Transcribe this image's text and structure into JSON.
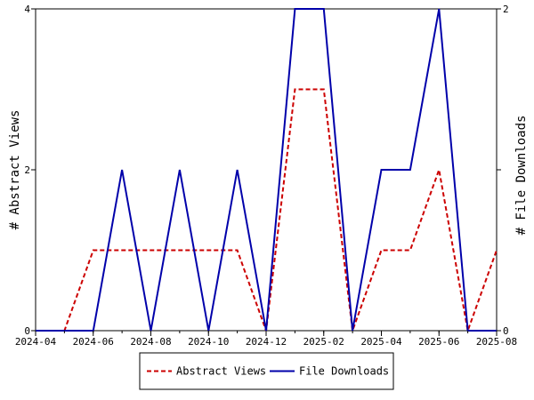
{
  "chart_data": {
    "type": "line",
    "title": "",
    "xlabel": "",
    "ylabel_left": "# Abstract Views",
    "ylabel_right": "# File Downloads",
    "ylim_left": [
      0,
      4
    ],
    "ylim_right": [
      0,
      2
    ],
    "yticks_left": [
      "0",
      "2",
      "4"
    ],
    "yticks_right": [
      "0",
      "1",
      "2"
    ],
    "x": [
      "2024-04",
      "2024-05",
      "2024-06",
      "2024-07",
      "2024-08",
      "2024-09",
      "2024-10",
      "2024-11",
      "2024-12",
      "2025-01",
      "2025-02",
      "2025-03",
      "2025-04",
      "2025-05",
      "2025-06",
      "2025-07",
      "2025-08"
    ],
    "xtick_labels": [
      "2024-04",
      "2024-06",
      "2024-08",
      "2024-10",
      "2024-12",
      "2025-02",
      "2025-04",
      "2025-06",
      "2025-08"
    ],
    "grid": false,
    "legend_position": "bottom-center",
    "series": [
      {
        "name": "Abstract Views",
        "axis": "left",
        "color": "#cc0000",
        "dash": "dashed",
        "values": [
          0,
          0,
          1,
          1,
          1,
          1,
          1,
          1,
          0,
          3,
          3,
          0,
          1,
          1,
          2,
          0,
          1
        ]
      },
      {
        "name": "File Downloads",
        "axis": "right",
        "color": "#0000aa",
        "dash": "solid",
        "values": [
          0,
          0,
          0,
          1,
          0,
          1,
          0,
          1,
          0,
          2,
          2,
          0,
          1,
          1,
          2,
          0,
          0
        ]
      }
    ]
  }
}
